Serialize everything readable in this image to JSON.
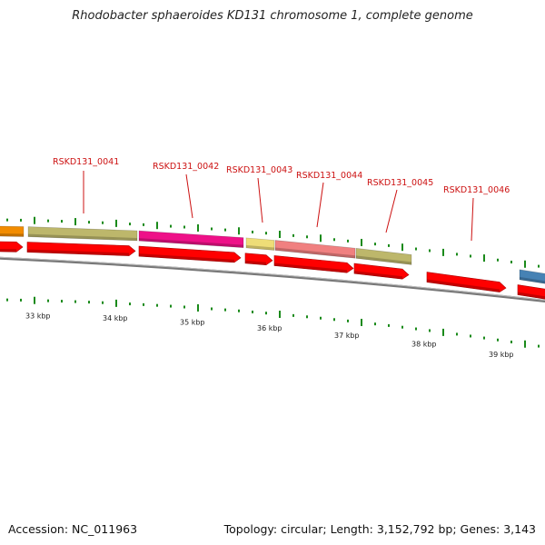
{
  "title": "Rhodobacter sphaeroides KD131 chromosome 1, complete genome",
  "footer": {
    "accession": "Accession: NC_011963",
    "summary": "Topology: circular; Length: 3,152,792 bp; Genes: 3,143"
  },
  "colors": {
    "backbone": "#808080",
    "cds": "#ff0000",
    "tick": "#1a8a1a",
    "label": "#cc1111",
    "orange": "#f28c00",
    "olive": "#bdb76b",
    "magenta": "#ee1188",
    "pale_yellow": "#eedd77",
    "salmon": "#f08080",
    "steel_blue": "#4682b4"
  },
  "genes": [
    {
      "name": "RSKD131_0041"
    },
    {
      "name": "RSKD131_0042"
    },
    {
      "name": "RSKD131_0043"
    },
    {
      "name": "RSKD131_0044"
    },
    {
      "name": "RSKD131_0045"
    },
    {
      "name": "RSKD131_0046"
    }
  ],
  "kbp_ticks": [
    "33 kbp",
    "34 kbp",
    "35 kbp",
    "36 kbp",
    "37 kbp",
    "38 kbp",
    "39 kbp"
  ]
}
